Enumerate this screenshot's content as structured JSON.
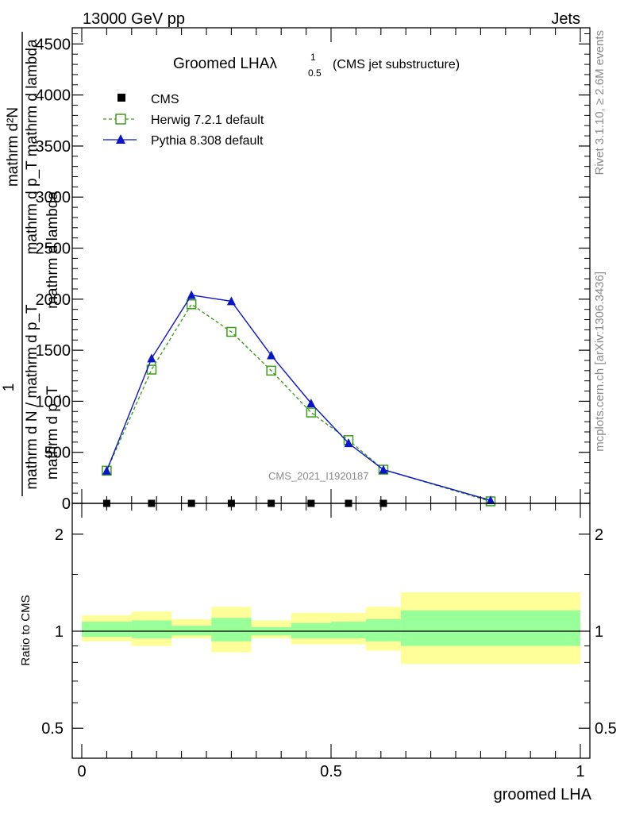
{
  "header": {
    "left": "13000 GeV pp",
    "right": "Jets"
  },
  "side": {
    "top": "Rivet 3.1.10, ≥ 2.6M events",
    "bottom": "mcplots.cern.ch [arXiv:1306.3436]"
  },
  "watermark": "CMS_2021_I1920187",
  "chart_data": [
    {
      "type": "line",
      "title": "Groomed LHAλ",
      "title_sup": "1",
      "title_sub": "0.5",
      "title_note": "(CMS jet substructure)",
      "ylabel_upper": "mathrm d²N",
      "ylabel_mid": "mathrm d p_T mathrm d lambda",
      "ylabel_over": "1",
      "ylabel_lower": "mathrm d N / mathrm d p_T",
      "yaxis_overlap_1": "mathrm d lambda",
      "yaxis_overlap_2": "mathrm d p_T",
      "xlim": [
        0,
        1
      ],
      "ylim": [
        0,
        4600
      ],
      "yticks": [
        0,
        500,
        1000,
        1500,
        2000,
        2500,
        3000,
        3500,
        4000,
        4500
      ],
      "ytick_labels": [
        "0",
        "500",
        "1000",
        "1500",
        "2000",
        "2500",
        "3000",
        "3500",
        "4000",
        "4500"
      ],
      "legend_position": "top-left",
      "series": [
        {
          "name": "CMS",
          "color": "#000000",
          "marker": "square-filled",
          "x": [
            0.05,
            0.14,
            0.22,
            0.3,
            0.38,
            0.46,
            0.535,
            0.605
          ],
          "y": [
            0,
            0,
            0,
            0,
            0,
            0,
            0,
            0
          ]
        },
        {
          "name": "Herwig 7.2.1 default",
          "color": "#3c9e1a",
          "marker": "square-open",
          "dashed": true,
          "x": [
            0.05,
            0.14,
            0.22,
            0.3,
            0.38,
            0.46,
            0.535,
            0.605,
            0.82
          ],
          "y": [
            320,
            1310,
            1950,
            1680,
            1300,
            890,
            620,
            330,
            20
          ]
        },
        {
          "name": "Pythia 8.308 default",
          "color": "#0a14c8",
          "marker": "triangle-filled",
          "dashed": false,
          "x": [
            0.05,
            0.14,
            0.22,
            0.3,
            0.38,
            0.46,
            0.535,
            0.605,
            0.82
          ],
          "y": [
            320,
            1420,
            2040,
            1980,
            1450,
            980,
            590,
            330,
            30
          ]
        }
      ]
    },
    {
      "type": "area",
      "ylabel": "Ratio to CMS",
      "xlabel": "groomed LHA",
      "xlim": [
        0,
        1
      ],
      "ylim": [
        0.4,
        2.3
      ],
      "ytick_labels": [
        "0.5",
        "1",
        "2"
      ],
      "yticks": [
        0.5,
        1,
        2
      ],
      "xtick_labels": [
        "0",
        "0.5",
        "1"
      ],
      "xticks": [
        0,
        0.5,
        1
      ],
      "inner_band_color": "#99ff99",
      "outer_band_color": "#ffff99",
      "bins": [
        {
          "x0": 0.0,
          "x1": 0.1,
          "inner": [
            0.96,
            1.07
          ],
          "outer": [
            0.93,
            1.12
          ]
        },
        {
          "x0": 0.1,
          "x1": 0.18,
          "inner": [
            0.95,
            1.08
          ],
          "outer": [
            0.9,
            1.15
          ]
        },
        {
          "x0": 0.18,
          "x1": 0.26,
          "inner": [
            0.97,
            1.04
          ],
          "outer": [
            0.95,
            1.09
          ]
        },
        {
          "x0": 0.26,
          "x1": 0.34,
          "inner": [
            0.93,
            1.1
          ],
          "outer": [
            0.86,
            1.19
          ]
        },
        {
          "x0": 0.34,
          "x1": 0.42,
          "inner": [
            0.97,
            1.03
          ],
          "outer": [
            0.95,
            1.08
          ]
        },
        {
          "x0": 0.42,
          "x1": 0.5,
          "inner": [
            0.95,
            1.06
          ],
          "outer": [
            0.91,
            1.14
          ]
        },
        {
          "x0": 0.5,
          "x1": 0.57,
          "inner": [
            0.95,
            1.07
          ],
          "outer": [
            0.91,
            1.14
          ]
        },
        {
          "x0": 0.57,
          "x1": 0.64,
          "inner": [
            0.93,
            1.09
          ],
          "outer": [
            0.87,
            1.19
          ]
        },
        {
          "x0": 0.64,
          "x1": 1.0,
          "inner": [
            0.9,
            1.16
          ],
          "outer": [
            0.79,
            1.32
          ]
        }
      ]
    }
  ]
}
